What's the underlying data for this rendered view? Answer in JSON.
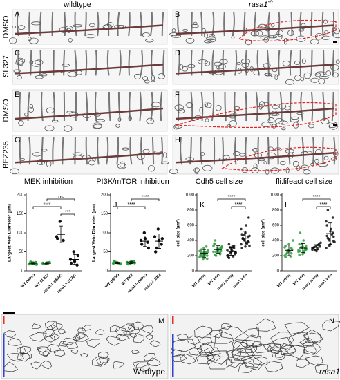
{
  "figure": {
    "column_headers": {
      "wildtype": "wildtype",
      "mutant_gene": "rasa1",
      "mutant_superscript": "-/-"
    },
    "row_labels": [
      "DMSO",
      "SL327",
      "DMSO",
      "BEZ235"
    ],
    "image_panels": [
      "A",
      "B",
      "C",
      "D",
      "E",
      "F",
      "G",
      "H"
    ],
    "bottom_panels": {
      "M": {
        "letter": "M",
        "caption": "Wildtype"
      },
      "N": {
        "letter": "N",
        "gene": "rasa1",
        "superscript": "-/-"
      }
    }
  },
  "chart_data": [
    {
      "type": "strip",
      "panel": "I",
      "title": "MEK inhibition",
      "y_label": "Largest Vein Diameter (µm)",
      "categories": [
        "WT DMSO",
        "WT SL327",
        "rasa1-/- DMSO",
        "rasa1-/- SL327"
      ],
      "colors": [
        "#2e9e3e",
        "#2e9e3e",
        "#111111",
        "#111111"
      ],
      "groups": [
        [
          18,
          20,
          22,
          19,
          21,
          17,
          23,
          20
        ],
        [
          20,
          19,
          22,
          18,
          21
        ],
        [
          90,
          130,
          80,
          85
        ],
        [
          30,
          50,
          15,
          20,
          25,
          40
        ]
      ],
      "means": [
        20,
        20,
        96,
        30
      ],
      "sd": [
        2,
        2,
        22,
        13
      ],
      "ylim": [
        0,
        200
      ],
      "yticks": [
        0,
        50,
        100,
        150,
        200
      ],
      "comparisons": [
        {
          "from": 1,
          "to": 3,
          "label": "ns"
        },
        {
          "from": 0,
          "to": 2,
          "label": "****"
        },
        {
          "from": 2,
          "to": 3,
          "label": "***"
        }
      ]
    },
    {
      "type": "strip",
      "panel": "J",
      "title": "PI3K/mTOR inhibition",
      "y_label": "Largest Vein Diameter (µm)",
      "categories": [
        "WT DMSO",
        "WT BEZ",
        "rasa1-/- DMSO",
        "rasa1-/- BEZ"
      ],
      "colors": [
        "#2e9e3e",
        "#2e9e3e",
        "#111111",
        "#111111"
      ],
      "groups": [
        [
          20,
          22,
          18,
          25,
          21,
          19,
          23
        ],
        [
          22,
          20,
          25,
          18,
          24,
          21
        ],
        [
          80,
          100,
          75,
          70,
          85,
          60
        ],
        [
          90,
          110,
          70,
          50,
          80,
          85,
          60
        ]
      ],
      "means": [
        21,
        22,
        78,
        78
      ],
      "sd": [
        2,
        3,
        14,
        19
      ],
      "ylim": [
        0,
        200
      ],
      "yticks": [
        0,
        50,
        100,
        150,
        200
      ],
      "comparisons": [
        {
          "from": 1,
          "to": 3,
          "label": "****"
        },
        {
          "from": 0,
          "to": 2,
          "label": "****"
        }
      ]
    },
    {
      "type": "strip",
      "panel": "K",
      "title": "Cdh5 cell size",
      "y_label": "cell size (µm²)",
      "categories": [
        "WT artery",
        "WT vein",
        "rasa1 artery",
        "rasa1 vein"
      ],
      "colors": [
        "#2e9e3e",
        "#2e9e3e",
        "#111111",
        "#111111"
      ],
      "groups": [
        [
          180,
          220,
          250,
          200,
          300,
          160,
          240,
          210,
          270,
          190,
          230,
          260,
          150,
          320,
          210,
          240,
          200,
          280,
          170,
          250
        ],
        [
          250,
          300,
          220,
          350,
          280,
          260,
          400,
          240,
          310,
          200,
          290,
          330,
          270,
          230,
          360,
          260,
          300,
          210,
          280,
          320,
          250
        ],
        [
          200,
          250,
          300,
          180,
          280,
          220,
          350,
          260,
          240,
          310,
          190,
          270,
          230,
          330,
          210,
          290,
          250,
          170,
          320,
          240
        ],
        [
          350,
          400,
          450,
          300,
          500,
          380,
          420,
          600,
          330,
          470,
          360,
          550,
          410,
          390,
          480,
          320,
          700,
          430,
          370,
          460
        ]
      ],
      "means": [
        230,
        280,
        255,
        430
      ],
      "sd": [
        50,
        50,
        50,
        90
      ],
      "ylim": [
        0,
        1000
      ],
      "yticks": [
        0,
        200,
        400,
        600,
        800,
        1000
      ],
      "comparisons": [
        {
          "from": 1,
          "to": 3,
          "label": "****"
        },
        {
          "from": 2,
          "to": 3,
          "label": "****"
        }
      ]
    },
    {
      "type": "strip",
      "panel": "L",
      "title": "fli:lifeact cell size",
      "y_label": "cell size (µm²)",
      "categories": [
        "WT artery",
        "WT vein",
        "rasa1 artery",
        "rasa1 vein"
      ],
      "colors": [
        "#2e9e3e",
        "#2e9e3e",
        "#111111",
        "#111111"
      ],
      "groups": [
        [
          200,
          250,
          300,
          180,
          350,
          280,
          220,
          260,
          400,
          240,
          190,
          310,
          270,
          230,
          330
        ],
        [
          250,
          300,
          280,
          350,
          220,
          330,
          260,
          400,
          290,
          310,
          240,
          270,
          360,
          300,
          210,
          320,
          280,
          500,
          260
        ],
        [
          280,
          320,
          350,
          300,
          260,
          330,
          310,
          290,
          370,
          270,
          340,
          300
        ],
        [
          300,
          400,
          500,
          600,
          350,
          450,
          800,
          550,
          380,
          420,
          480,
          650,
          330,
          700,
          460,
          520,
          390,
          430
        ]
      ],
      "means": [
        270,
        300,
        310,
        490
      ],
      "sd": [
        70,
        60,
        35,
        140
      ],
      "ylim": [
        0,
        1000
      ],
      "yticks": [
        0,
        200,
        400,
        600,
        800,
        1000
      ],
      "comparisons": [
        {
          "from": 1,
          "to": 3,
          "label": "****"
        },
        {
          "from": 2,
          "to": 3,
          "label": "****"
        }
      ]
    }
  ]
}
